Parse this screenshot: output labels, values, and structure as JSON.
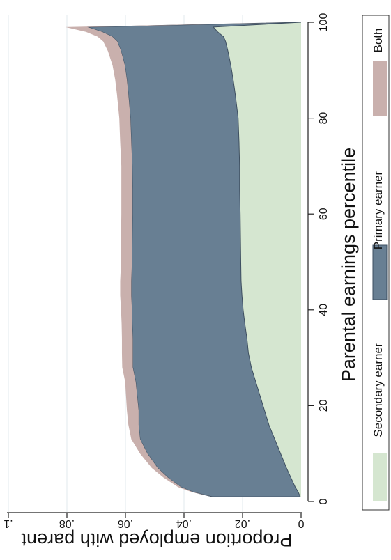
{
  "chart_data": {
    "type": "area",
    "stacked": true,
    "orientation": "rotated-90",
    "xlabel": "Parental earnings percentile",
    "ylabel": "Proportion employed with parent",
    "xlim": [
      0,
      100
    ],
    "ylim": [
      0,
      0.1
    ],
    "x_ticks": [
      {
        "value": 0,
        "label": "0"
      },
      {
        "value": 20,
        "label": "20"
      },
      {
        "value": 40,
        "label": "40"
      },
      {
        "value": 60,
        "label": "60"
      },
      {
        "value": 80,
        "label": "80"
      },
      {
        "value": 100,
        "label": "100"
      }
    ],
    "y_ticks": [
      {
        "value": 0,
        "label": "0"
      },
      {
        "value": 0.02,
        "label": ".02"
      },
      {
        "value": 0.04,
        "label": ".04"
      },
      {
        "value": 0.06,
        "label": ".06"
      },
      {
        "value": 0.08,
        "label": ".08"
      },
      {
        "value": 0.1,
        "label": ".1"
      }
    ],
    "grid": true,
    "legend_position": "right",
    "x": [
      1,
      2,
      3,
      5,
      7,
      10,
      13,
      16,
      19,
      22,
      25,
      28,
      31,
      34,
      37,
      40,
      43,
      46,
      50,
      55,
      60,
      65,
      70,
      75,
      80,
      85,
      88,
      91,
      94,
      96,
      97,
      98,
      99,
      100
    ],
    "series": [
      {
        "name": "Secondary earner",
        "color": "#d5e6d0",
        "values": [
          0.0003,
          0.001,
          0.002,
          0.0035,
          0.005,
          0.007,
          0.009,
          0.011,
          0.0125,
          0.014,
          0.0155,
          0.017,
          0.018,
          0.0185,
          0.0192,
          0.0198,
          0.0202,
          0.0205,
          0.0206,
          0.0207,
          0.0208,
          0.021,
          0.021,
          0.0212,
          0.0215,
          0.0225,
          0.0232,
          0.024,
          0.025,
          0.0258,
          0.0265,
          0.0285,
          0.03,
          0.0
        ]
      },
      {
        "name": "Primary earner",
        "color": "#687f93",
        "values": [
          0.03,
          0.036,
          0.039,
          0.042,
          0.044,
          0.0455,
          0.046,
          0.0445,
          0.043,
          0.042,
          0.041,
          0.0405,
          0.0395,
          0.039,
          0.0385,
          0.038,
          0.0378,
          0.0375,
          0.0372,
          0.037,
          0.0368,
          0.0366,
          0.0367,
          0.0368,
          0.0368,
          0.0365,
          0.0363,
          0.0362,
          0.0365,
          0.037,
          0.038,
          0.0395,
          0.043,
          0.0
        ]
      },
      {
        "name": "Both",
        "color": "#c9b0ad",
        "values": [
          0.0,
          0.0005,
          0.001,
          0.0015,
          0.002,
          0.0025,
          0.003,
          0.0035,
          0.004,
          0.0038,
          0.0036,
          0.0036,
          0.0037,
          0.0037,
          0.0036,
          0.0037,
          0.0038,
          0.0038,
          0.0037,
          0.0038,
          0.0038,
          0.0038,
          0.0037,
          0.0038,
          0.0038,
          0.0039,
          0.004,
          0.0042,
          0.0045,
          0.0048,
          0.005,
          0.0055,
          0.0075,
          0.0
        ]
      }
    ]
  }
}
